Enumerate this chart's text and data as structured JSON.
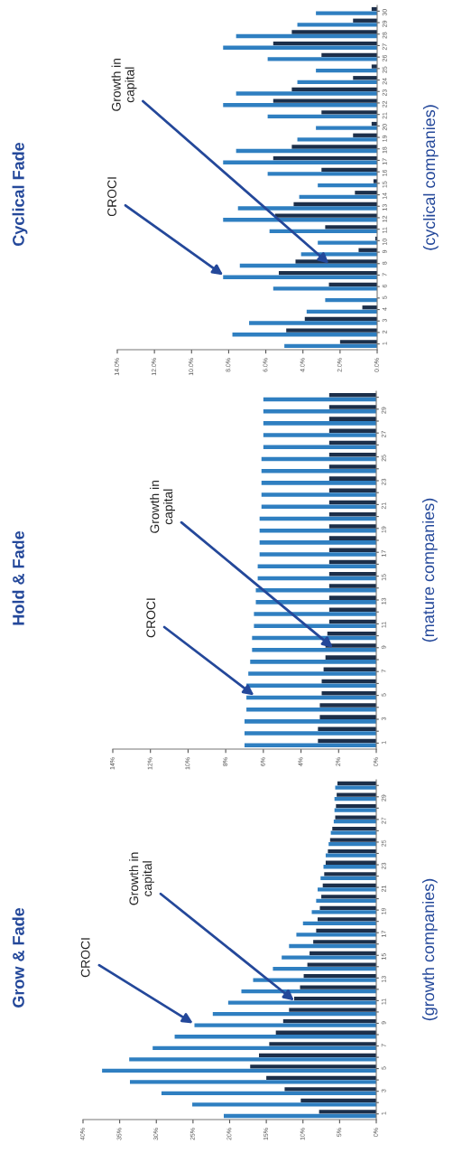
{
  "chart_data": [
    {
      "type": "bar",
      "orientation": "horizontal",
      "title": "Cyclical Fade",
      "ylabel": "(cyclical companies)",
      "categories": [
        "30",
        "29",
        "28",
        "27",
        "26",
        "25",
        "24",
        "23",
        "22",
        "21",
        "20",
        "19",
        "18",
        "17",
        "16",
        "15",
        "14",
        "13",
        "12",
        "11",
        "10",
        "9",
        "8",
        "7",
        "6",
        "5",
        "4",
        "3",
        "2",
        "1"
      ],
      "series": [
        {
          "color": "#1c2f4a",
          "values": [
            0.3,
            1.3,
            4.6,
            5.6,
            3.0,
            0.3,
            1.3,
            4.6,
            5.6,
            3.0,
            0.3,
            1.3,
            4.6,
            5.6,
            3.0,
            0.2,
            1.2,
            4.5,
            5.5,
            2.8,
            0.1,
            1.0,
            4.4,
            5.3,
            2.6,
            0.0,
            0.8,
            3.9,
            4.9,
            2.0
          ]
        },
        {
          "color": "#2f7fc1",
          "values": [
            3.3,
            4.3,
            7.6,
            8.3,
            5.9,
            3.3,
            4.3,
            7.6,
            8.3,
            5.9,
            3.3,
            4.3,
            7.6,
            8.3,
            5.9,
            3.2,
            4.2,
            7.5,
            8.3,
            5.8,
            3.2,
            4.1,
            7.4,
            8.3,
            5.6,
            2.8,
            3.8,
            6.9,
            7.8,
            5.0
          ]
        }
      ],
      "xlim": [
        14,
        0
      ],
      "xticks": [
        {
          "value": 0,
          "label": "0.0%"
        },
        {
          "value": 2,
          "label": "2.0%"
        },
        {
          "value": 4,
          "label": "4.0%"
        },
        {
          "value": 6,
          "label": "6.0%"
        },
        {
          "value": 8,
          "label": "8.0%"
        },
        {
          "value": 10,
          "label": "10.0%"
        },
        {
          "value": 12,
          "label": "12.0%"
        },
        {
          "value": 14,
          "label": "14.0%"
        }
      ],
      "annotations": [
        {
          "text": "CROCI",
          "x": 8.3,
          "y": "7"
        },
        {
          "text": "Growth in\ncapital",
          "x": 2.6,
          "y": "8"
        }
      ]
    },
    {
      "type": "bar",
      "orientation": "horizontal",
      "title": "Hold & Fade",
      "ylabel": "(mature companies)",
      "categories": [
        null,
        "29",
        null,
        "27",
        null,
        "25",
        null,
        "23",
        null,
        "21",
        null,
        "19",
        null,
        "17",
        null,
        "15",
        null,
        "13",
        null,
        "11",
        null,
        "9",
        null,
        "7",
        null,
        "5",
        null,
        "3",
        null,
        "1"
      ],
      "series": [
        {
          "color": "#1c2f4a",
          "values": [
            2.5,
            2.5,
            2.5,
            2.5,
            2.5,
            2.5,
            2.5,
            2.5,
            2.5,
            2.5,
            2.5,
            2.5,
            2.5,
            2.5,
            2.5,
            2.5,
            2.5,
            2.5,
            2.5,
            2.5,
            2.6,
            2.7,
            2.7,
            2.8,
            2.9,
            2.9,
            3.0,
            3.0,
            3.1,
            3.1
          ]
        },
        {
          "color": "#2f7fc1",
          "values": [
            6.0,
            6.0,
            6.0,
            6.0,
            6.0,
            6.1,
            6.1,
            6.1,
            6.1,
            6.1,
            6.2,
            6.2,
            6.2,
            6.2,
            6.3,
            6.3,
            6.4,
            6.4,
            6.5,
            6.5,
            6.6,
            6.6,
            6.7,
            6.8,
            6.9,
            6.9,
            6.9,
            7.0,
            7.0,
            7.0
          ]
        }
      ],
      "xlim": [
        14,
        0
      ],
      "xticks": [
        {
          "value": 0,
          "label": "0%"
        },
        {
          "value": 2,
          "label": "2%"
        },
        {
          "value": 4,
          "label": "4%"
        },
        {
          "value": 6,
          "label": "6%"
        },
        {
          "value": 8,
          "label": "8%"
        },
        {
          "value": 10,
          "label": "10%"
        },
        {
          "value": 12,
          "label": "12%"
        },
        {
          "value": 14,
          "label": "14%"
        }
      ],
      "annotations": [
        {
          "text": "CROCI",
          "x": 6.5,
          "y": "5"
        },
        {
          "text": "Growth in\ncapital",
          "x": 2.3,
          "y": "9"
        }
      ]
    },
    {
      "type": "bar",
      "orientation": "horizontal",
      "title": "Grow & Fade",
      "ylabel": "(growth companies)",
      "categories": [
        null,
        "29",
        null,
        "27",
        null,
        "25",
        null,
        "23",
        null,
        "21",
        null,
        "19",
        null,
        "17",
        null,
        "15",
        null,
        "13",
        null,
        "11",
        null,
        "9",
        null,
        "7",
        null,
        "5",
        null,
        "3",
        null,
        "1"
      ],
      "series": [
        {
          "color": "#1c2f4a",
          "values": [
            5.3,
            5.4,
            5.5,
            5.6,
            6.0,
            6.3,
            6.6,
            6.9,
            7.1,
            7.3,
            7.5,
            7.7,
            8.0,
            8.2,
            8.6,
            9.1,
            9.4,
            9.9,
            10.4,
            11.2,
            11.9,
            12.7,
            13.7,
            14.6,
            16.0,
            17.2,
            15.0,
            12.5,
            10.3,
            7.8
          ]
        },
        {
          "color": "#2f7fc1",
          "values": [
            5.6,
            5.7,
            5.7,
            5.8,
            6.2,
            6.5,
            6.9,
            7.2,
            7.6,
            8.0,
            8.2,
            8.8,
            10.0,
            10.9,
            11.9,
            12.9,
            14.1,
            16.8,
            18.4,
            20.2,
            22.3,
            24.8,
            27.5,
            30.5,
            33.7,
            37.4,
            33.6,
            29.3,
            25.1,
            20.8
          ]
        }
      ],
      "xlim": [
        40,
        0
      ],
      "xticks": [
        {
          "value": 0,
          "label": "0%"
        },
        {
          "value": 5,
          "label": "5%"
        },
        {
          "value": 10,
          "label": "10%"
        },
        {
          "value": 15,
          "label": "15%"
        },
        {
          "value": 20,
          "label": "20%"
        },
        {
          "value": 25,
          "label": "25%"
        },
        {
          "value": 30,
          "label": "30%"
        },
        {
          "value": 35,
          "label": "35%"
        },
        {
          "value": 40,
          "label": "40%"
        }
      ],
      "annotations": [
        {
          "text": "CROCI",
          "x": 25,
          "y": "9"
        },
        {
          "text": "Growth in\ncapital",
          "x": 11.2,
          "y": "11"
        }
      ]
    }
  ]
}
